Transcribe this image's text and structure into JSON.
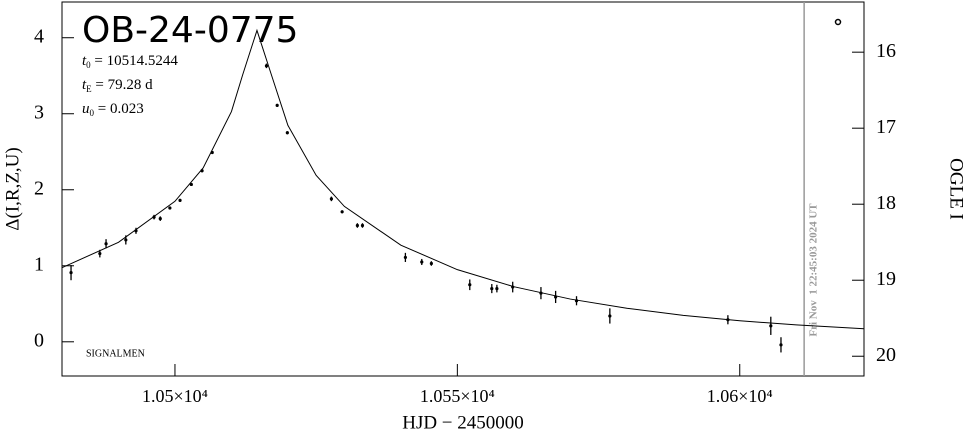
{
  "chart_data": {
    "type": "lightcurve",
    "title": "OB-24-0775",
    "params": [
      {
        "symbol": "t",
        "sub": "0",
        "text": " = 10514.5244"
      },
      {
        "symbol": "t",
        "sub": "E",
        "text": " = 79.28 d"
      },
      {
        "symbol": "u",
        "sub": "0",
        "text": " = 0.023"
      }
    ],
    "credit": "SIGNALMEN",
    "x_label": "HJD − 2450000",
    "y_label": "Δ(I,R,Z,U)",
    "y2_label": "OGLE I",
    "xlim": [
      10480,
      10622
    ],
    "xticks": [
      {
        "value": 10500,
        "label": "1.05×10⁴"
      },
      {
        "value": 10550,
        "label": "1.055×10⁴"
      },
      {
        "value": 10600,
        "label": "1.06×10⁴"
      }
    ],
    "ylim": [
      -0.45,
      4.47
    ],
    "yticks": [
      0,
      1,
      2,
      3,
      4
    ],
    "y2lim": [
      15.34,
      20.26
    ],
    "y2_inverted": true,
    "y2ticks": [
      16,
      17,
      18,
      19,
      20
    ],
    "color": "#000000",
    "now": {
      "x": 10611.4,
      "label": "Fri Nov  1 22:45:03 2024 UT",
      "color": "#999999"
    },
    "points": {
      "x": [
        10481.6,
        10486.7,
        10487.8,
        10491.3,
        10493.1,
        10496.3,
        10497.4,
        10499.1,
        10500.9,
        10502.9,
        10504.8,
        10506.6,
        10516.2,
        10518.1,
        10519.9,
        10527.7,
        10529.6,
        10532.3,
        10533.2,
        10540.8,
        10543.7,
        10545.4,
        10552.2,
        10556.1,
        10557.0,
        10559.8,
        10564.8,
        10567.4,
        10571.1,
        10577.0,
        10597.9,
        10605.5,
        10607.3
      ],
      "values": [
        0.91,
        1.16,
        1.29,
        1.34,
        1.46,
        1.64,
        1.62,
        1.76,
        1.86,
        2.07,
        2.25,
        2.49,
        3.63,
        3.11,
        2.75,
        1.88,
        1.71,
        1.53,
        1.53,
        1.11,
        1.05,
        1.03,
        0.75,
        0.7,
        0.7,
        0.72,
        0.64,
        0.59,
        0.54,
        0.34,
        0.29,
        0.21,
        -0.04
      ],
      "errors": [
        0.1,
        0.05,
        0.06,
        0.06,
        0.04,
        0.03,
        0.03,
        0.02,
        0.02,
        0.02,
        0.02,
        0.02,
        0.03,
        0.02,
        0.02,
        0.03,
        0.02,
        0.03,
        0.03,
        0.06,
        0.04,
        0.03,
        0.07,
        0.06,
        0.05,
        0.07,
        0.08,
        0.08,
        0.06,
        0.1,
        0.06,
        0.12,
        0.1
      ]
    },
    "model": {
      "x": [
        10480,
        10490,
        10500,
        10505,
        10510,
        10512,
        10514.52,
        10517,
        10520,
        10525,
        10530,
        10540,
        10550,
        10560,
        10570,
        10580,
        10590,
        10600,
        10610,
        10622
      ],
      "values": [
        0.975,
        1.309,
        1.848,
        2.288,
        3.029,
        3.515,
        4.096,
        3.529,
        2.847,
        2.189,
        1.781,
        1.271,
        0.949,
        0.725,
        0.562,
        0.441,
        0.348,
        0.277,
        0.222,
        0.172
      ]
    }
  }
}
